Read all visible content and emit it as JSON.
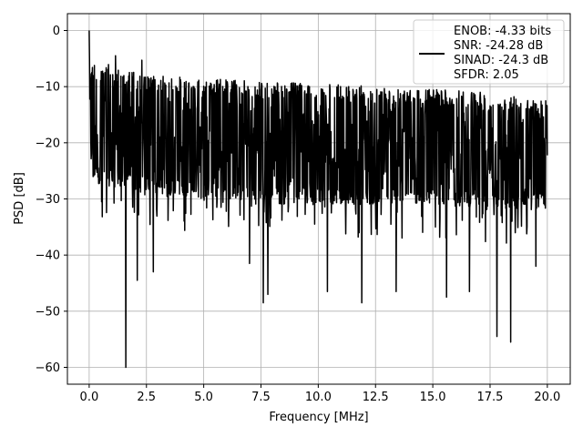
{
  "chart_data": {
    "type": "line",
    "xlabel": "Frequency [MHz]",
    "ylabel": "PSD [dB]",
    "xlim": [
      -0.95,
      21.0
    ],
    "ylim": [
      -63.0,
      3.0
    ],
    "xticks": [
      0.0,
      2.5,
      5.0,
      7.5,
      10.0,
      12.5,
      15.0,
      17.5,
      20.0
    ],
    "xtick_labels": [
      "0.0",
      "2.5",
      "5.0",
      "7.5",
      "10.0",
      "12.5",
      "15.0",
      "17.5",
      "20.0"
    ],
    "yticks": [
      0,
      -10,
      -20,
      -30,
      -40,
      -50,
      -60
    ],
    "ytick_labels": [
      "0",
      "−10",
      "−20",
      "−30",
      "−40",
      "−50",
      "−60"
    ],
    "grid": true,
    "legend_position": "top-right",
    "legend_lines": [
      "ENOB: -4.33 bits",
      "SNR: -24.28 dB",
      "SINAD: -24.3 dB",
      "SFDR: 2.05"
    ],
    "series_color": "#000000",
    "x_range": [
      0.0,
      20.0
    ],
    "psd_envelope": {
      "x": [
        0.0,
        2.5,
        5.0,
        7.5,
        10.0,
        12.5,
        15.0,
        17.5,
        20.0
      ],
      "upper": [
        -5,
        -8,
        -8.5,
        -9,
        -9.5,
        -10,
        -10.5,
        -11,
        -12
      ],
      "lower": [
        -27,
        -29,
        -30,
        -31,
        -31,
        -31,
        -31,
        -32,
        -32
      ]
    },
    "peaks": [
      {
        "x": 0.0,
        "y": 0
      },
      {
        "x": 1.15,
        "y": -4.5
      },
      {
        "x": 2.3,
        "y": -5.3
      }
    ],
    "dips": [
      {
        "x": 1.6,
        "y": -60
      },
      {
        "x": 2.1,
        "y": -44.5
      },
      {
        "x": 2.8,
        "y": -43
      },
      {
        "x": 7.0,
        "y": -41.5
      },
      {
        "x": 7.6,
        "y": -48.5
      },
      {
        "x": 7.8,
        "y": -47
      },
      {
        "x": 10.4,
        "y": -46.5
      },
      {
        "x": 11.9,
        "y": -48.5
      },
      {
        "x": 13.4,
        "y": -46.5
      },
      {
        "x": 15.6,
        "y": -47.5
      },
      {
        "x": 16.6,
        "y": -46.5
      },
      {
        "x": 17.8,
        "y": -54.5
      },
      {
        "x": 18.4,
        "y": -55.5
      },
      {
        "x": 19.5,
        "y": -42
      }
    ]
  }
}
